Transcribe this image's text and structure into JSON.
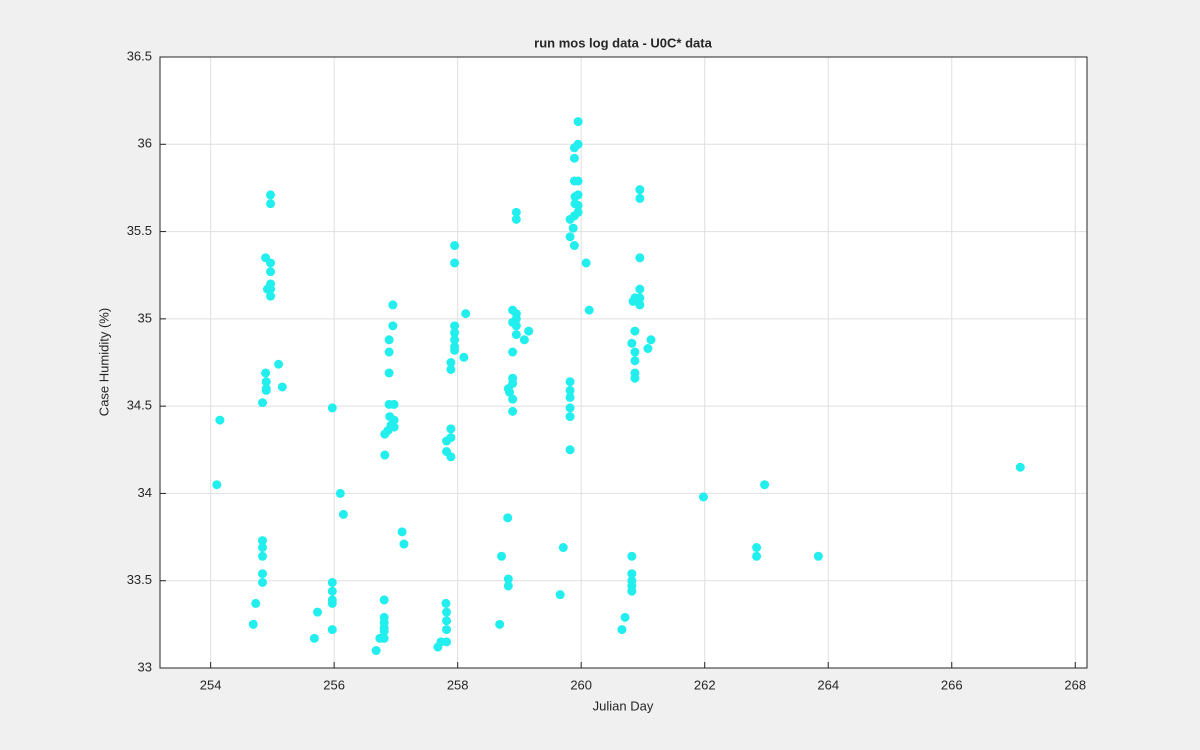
{
  "chart_data": {
    "type": "scatter",
    "title": "run mos log data - U0C* data",
    "xlabel": "Julian Day",
    "ylabel": "Case Humidity (%)",
    "color": "#22eeee",
    "grid": true,
    "xlim": [
      253.18,
      268.19
    ],
    "xticks": [
      254,
      256,
      258,
      260,
      262,
      264,
      266,
      268
    ],
    "ylim": [
      33,
      36.5
    ],
    "yticks": [
      33,
      33.5,
      34,
      34.5,
      35,
      35.5,
      36,
      36.5
    ],
    "x": [
      254.1,
      254.15,
      254.69,
      254.73,
      254.84,
      254.84,
      254.84,
      254.84,
      254.84,
      254.84,
      254.89,
      254.9,
      254.9,
      254.9,
      254.89,
      254.92,
      254.97,
      254.97,
      254.97,
      254.97,
      254.97,
      254.97,
      254.97,
      255.1,
      255.16,
      255.68,
      255.73,
      255.97,
      255.97,
      255.97,
      255.97,
      255.97,
      255.97,
      256.1,
      256.15,
      256.68,
      256.74,
      256.81,
      256.81,
      256.81,
      256.81,
      256.81,
      256.81,
      256.82,
      256.82,
      256.87,
      256.89,
      256.89,
      256.89,
      256.89,
      256.9,
      256.92,
      256.95,
      256.95,
      256.97,
      256.97,
      256.97,
      257.1,
      257.13,
      257.68,
      257.73,
      257.81,
      257.82,
      257.82,
      257.82,
      257.82,
      257.82,
      257.82,
      257.89,
      257.89,
      257.89,
      257.89,
      257.89,
      257.95,
      257.95,
      257.95,
      257.95,
      257.95,
      257.95,
      257.95,
      258.1,
      258.13,
      258.68,
      258.71,
      258.81,
      258.82,
      258.82,
      258.82,
      258.84,
      258.89,
      258.89,
      258.89,
      258.89,
      258.89,
      258.89,
      258.89,
      258.95,
      258.95,
      258.95,
      258.95,
      258.95,
      258.95,
      259.08,
      259.15,
      259.66,
      259.71,
      259.82,
      259.82,
      259.82,
      259.82,
      259.82,
      259.82,
      259.82,
      259.82,
      259.87,
      259.89,
      259.89,
      259.89,
      259.89,
      259.89,
      259.9,
      259.9,
      259.95,
      259.95,
      259.95,
      259.95,
      259.95,
      259.95,
      260.08,
      260.13,
      260.66,
      260.71,
      260.82,
      260.82,
      260.82,
      260.82,
      260.82,
      260.82,
      260.84,
      260.87,
      260.87,
      260.87,
      260.87,
      260.87,
      260.87,
      260.95,
      260.95,
      260.95,
      260.95,
      260.95,
      260.95,
      261.08,
      261.13,
      261.98,
      262.84,
      262.84,
      262.97,
      263.84,
      267.11
    ],
    "values": [
      34.05,
      34.42,
      33.25,
      33.37,
      33.73,
      33.69,
      33.64,
      33.54,
      33.49,
      34.52,
      34.69,
      34.64,
      34.6,
      34.59,
      35.35,
      35.17,
      35.71,
      35.66,
      35.32,
      35.27,
      35.2,
      35.17,
      35.13,
      34.74,
      34.61,
      33.17,
      33.32,
      34.49,
      33.49,
      33.44,
      33.39,
      33.37,
      33.22,
      34.0,
      33.88,
      33.1,
      33.17,
      33.17,
      33.39,
      33.29,
      33.26,
      33.23,
      33.21,
      34.22,
      34.34,
      34.36,
      34.51,
      34.69,
      34.81,
      34.88,
      34.44,
      34.39,
      35.08,
      34.96,
      34.51,
      34.42,
      34.38,
      33.78,
      33.71,
      33.12,
      33.15,
      33.37,
      33.32,
      33.27,
      33.22,
      33.15,
      34.24,
      34.3,
      34.71,
      34.75,
      34.32,
      34.37,
      34.21,
      35.42,
      35.32,
      34.96,
      34.92,
      34.88,
      34.84,
      34.82,
      34.78,
      35.03,
      33.25,
      33.64,
      33.86,
      33.51,
      33.47,
      34.6,
      34.58,
      34.81,
      34.66,
      34.63,
      34.54,
      34.47,
      35.05,
      34.98,
      35.61,
      35.57,
      35.03,
      35.0,
      34.96,
      34.91,
      34.88,
      34.93,
      33.42,
      33.69,
      35.47,
      35.57,
      34.64,
      34.59,
      34.55,
      34.49,
      34.44,
      34.25,
      35.52,
      35.42,
      35.92,
      35.98,
      35.59,
      35.79,
      35.66,
      35.7,
      36.13,
      36.0,
      35.79,
      35.71,
      35.65,
      35.61,
      35.32,
      35.05,
      33.22,
      33.29,
      33.64,
      33.54,
      33.5,
      33.47,
      33.44,
      34.86,
      35.1,
      34.93,
      34.81,
      34.76,
      34.69,
      34.66,
      35.12,
      35.74,
      35.69,
      35.35,
      35.17,
      35.12,
      35.08,
      34.83,
      34.88,
      33.98,
      33.69,
      33.64,
      34.05,
      33.64,
      34.15
    ]
  }
}
